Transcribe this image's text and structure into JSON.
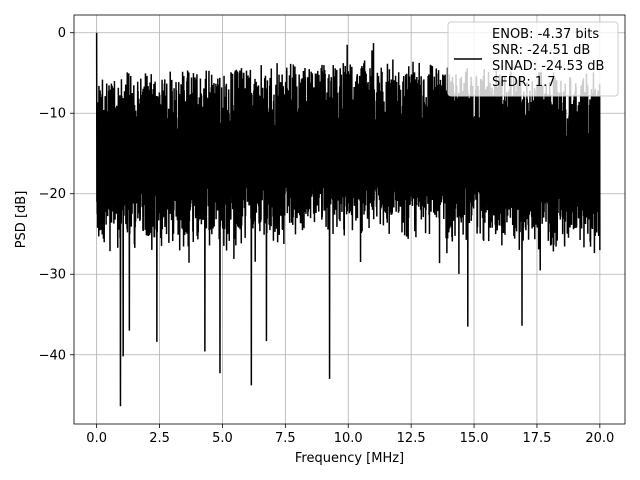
{
  "chart_data": {
    "type": "line",
    "title": "",
    "xlabel": "Frequency [MHz]",
    "ylabel": "PSD [dB]",
    "xlim": [
      -0.9,
      21.0
    ],
    "ylim": [
      -48.6,
      2.2
    ],
    "xticks": [
      0.0,
      2.5,
      5.0,
      7.5,
      10.0,
      12.5,
      15.0,
      17.5,
      20.0
    ],
    "xtick_labels": [
      "0.0",
      "2.5",
      "5.0",
      "7.5",
      "10.0",
      "12.5",
      "15.0",
      "17.5",
      "20.0"
    ],
    "yticks": [
      0,
      -10,
      -20,
      -30,
      -40
    ],
    "ytick_labels": [
      "0",
      "−10",
      "−20",
      "−30",
      "−40"
    ],
    "grid": true,
    "legend_position": "top-right",
    "line_color": "#000000",
    "series": [
      {
        "name": "ENOB: -4.37 bits\nSNR: -24.51 dB\nSINAD: -24.53 dB\nSFDR: 1.7",
        "x_range": [
          0.0,
          20.0
        ],
        "peak": {
          "x": 0.0,
          "y": 0.0
        },
        "typical_range": [
          -28.0,
          -5.0
        ],
        "notable_minima": [
          {
            "x": 0.95,
            "y": -46.4
          },
          {
            "x": 6.15,
            "y": -43.8
          },
          {
            "x": 9.25,
            "y": -43.0
          },
          {
            "x": 4.9,
            "y": -42.3
          },
          {
            "x": 1.05,
            "y": -40.2
          },
          {
            "x": 4.3,
            "y": -39.6
          },
          {
            "x": 6.75,
            "y": -38.3
          },
          {
            "x": 1.3,
            "y": -37.0
          },
          {
            "x": 14.75,
            "y": -36.5
          },
          {
            "x": 2.4,
            "y": -38.4
          },
          {
            "x": 16.9,
            "y": -36.4
          }
        ],
        "notable_maxima": [
          {
            "x": 0.0,
            "y": 0.0
          },
          {
            "x": 11.0,
            "y": -1.3
          },
          {
            "x": 9.95,
            "y": -1.5
          },
          {
            "x": 10.95,
            "y": -2.2
          },
          {
            "x": 5.7,
            "y": -4.7
          },
          {
            "x": 18.8,
            "y": -5.5
          },
          {
            "x": 15.3,
            "y": -5.8
          }
        ],
        "legend_lines": [
          "ENOB: -4.37 bits",
          "SNR: -24.51 dB",
          "SINAD: -24.53 dB",
          "SFDR: 1.7"
        ]
      }
    ]
  }
}
